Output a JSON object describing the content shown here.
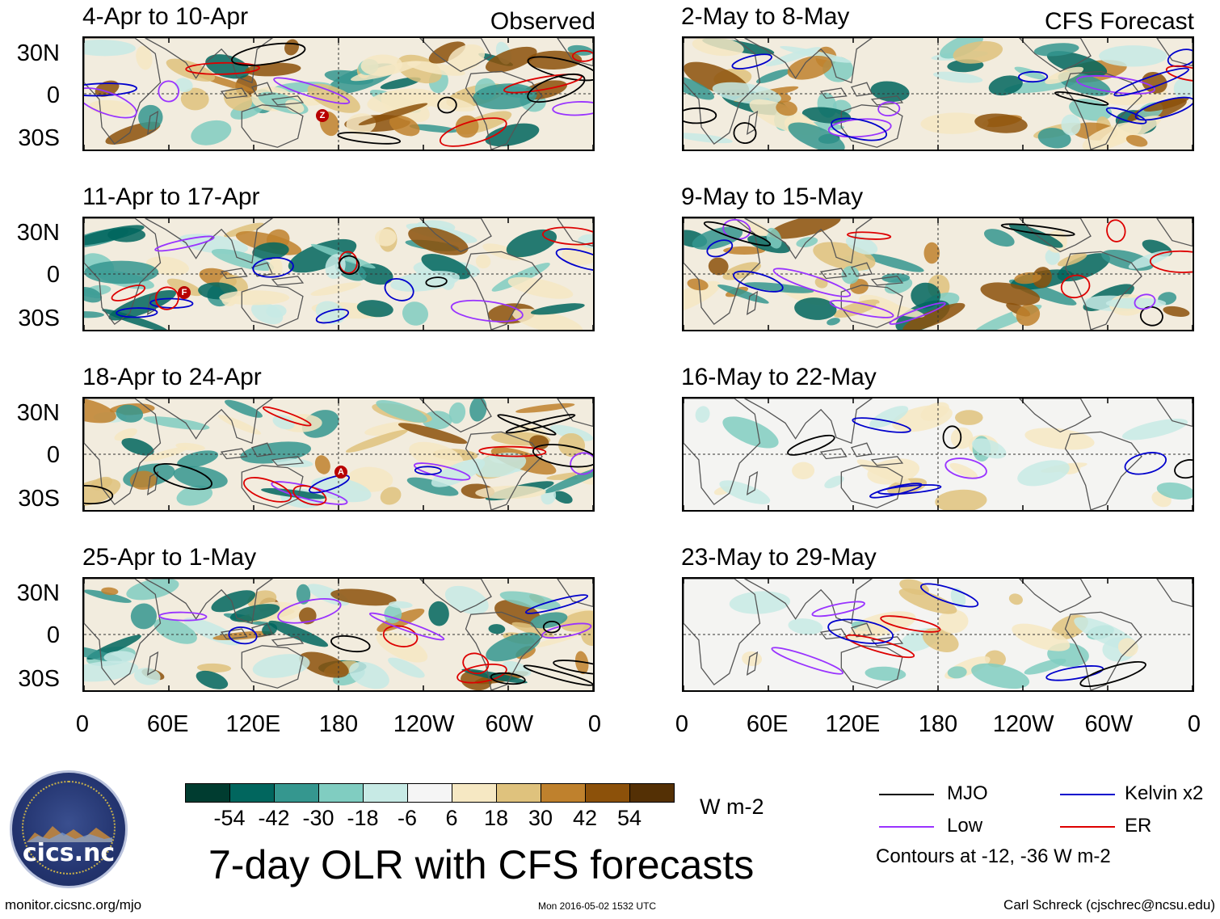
{
  "header": {
    "observed_label": "Observed",
    "forecast_label": "CFS Forecast"
  },
  "panels": {
    "observed": [
      {
        "title": "4-Apr to 10-Apr",
        "markers": [
          "Z"
        ]
      },
      {
        "title": "11-Apr to 17-Apr",
        "markers": [
          "F"
        ]
      },
      {
        "title": "18-Apr to 24-Apr",
        "markers": [
          "A"
        ]
      },
      {
        "title": "25-Apr to 1-May",
        "markers": []
      }
    ],
    "forecast": [
      {
        "title": "2-May to 8-May"
      },
      {
        "title": "9-May to 15-May"
      },
      {
        "title": "16-May to 22-May"
      },
      {
        "title": "23-May to 29-May"
      }
    ]
  },
  "axes": {
    "lat_labels": [
      "30N",
      "0",
      "30S"
    ],
    "lon_labels": [
      "0",
      "60E",
      "120E",
      "180",
      "120W",
      "60W",
      "0"
    ]
  },
  "colorbar": {
    "colors": [
      "#003c30",
      "#01665e",
      "#35978f",
      "#80cdc1",
      "#c7eae5",
      "#f5f5f5",
      "#f6e8c3",
      "#dfc27d",
      "#bf812d",
      "#8c510a",
      "#543005"
    ],
    "labels": [
      "-54",
      "-42",
      "-30",
      "-18",
      "-6",
      "6",
      "18",
      "30",
      "42",
      "54"
    ],
    "units": "W m-2"
  },
  "legend": {
    "items": [
      {
        "label": "MJO",
        "color": "#000000"
      },
      {
        "label": "Kelvin x2",
        "color": "#0000cc"
      },
      {
        "label": "Low",
        "color": "#9933ff"
      },
      {
        "label": "ER",
        "color": "#dd0000"
      }
    ],
    "note": "Contours at -12, -36 W m-2"
  },
  "main_title": "7-day OLR with CFS forecasts",
  "footer": {
    "left": "monitor.cicsnc.org/mjo",
    "center": "Mon 2016-05-02 1532 UTC",
    "right": "Carl Schreck (cjschrec@ncsu.edu)"
  },
  "logo": {
    "name": "cics.nc",
    "arc_text": "Cooperative Institute for Climate and Satellites"
  }
}
